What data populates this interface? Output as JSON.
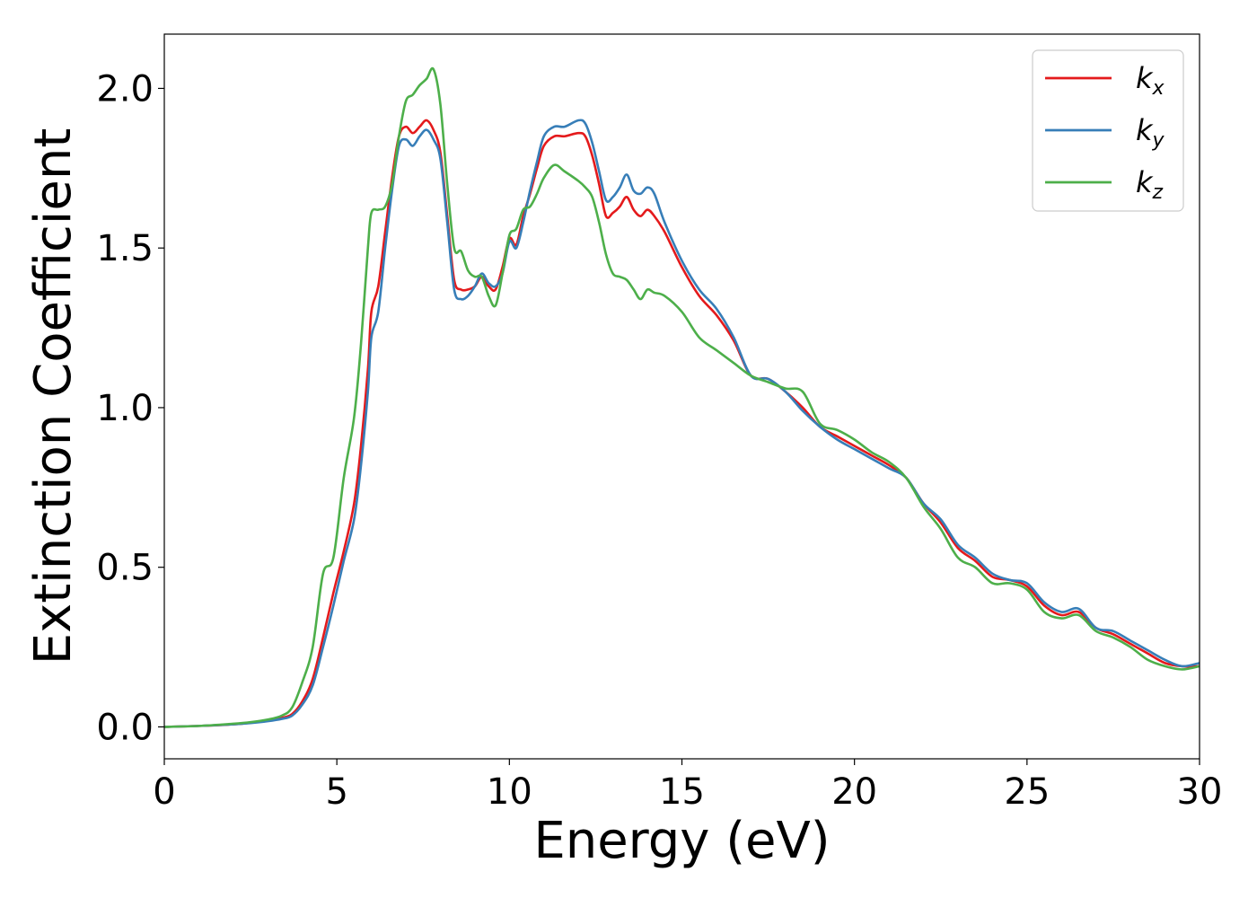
{
  "chart_data": {
    "type": "line",
    "xlabel": "Energy (eV)",
    "ylabel": "Extinction Coefficient",
    "xlim": [
      0,
      30
    ],
    "ylim": [
      -0.1,
      2.17
    ],
    "xticks": [
      0,
      5,
      10,
      15,
      20,
      25,
      30
    ],
    "xtick_labels": [
      "0",
      "5",
      "10",
      "15",
      "20",
      "25",
      "30"
    ],
    "yticks": [
      0.0,
      0.5,
      1.0,
      1.5,
      2.0
    ],
    "ytick_labels": [
      "0.0",
      "0.5",
      "1.0",
      "1.5",
      "2.0"
    ],
    "grid": false,
    "legend_position": "top-right",
    "series": [
      {
        "name": "kx",
        "legend_base": "k",
        "legend_sub": "x",
        "color": "#e41a1c",
        "x": [
          0,
          1,
          2,
          2.5,
          3,
          3.4,
          3.7,
          4.0,
          4.3,
          4.6,
          4.9,
          5.2,
          5.5,
          5.7,
          5.9,
          6.0,
          6.2,
          6.4,
          6.6,
          6.8,
          7.0,
          7.2,
          7.4,
          7.6,
          7.8,
          8.0,
          8.2,
          8.4,
          8.6,
          8.8,
          9.0,
          9.2,
          9.4,
          9.6,
          9.8,
          10.0,
          10.2,
          10.4,
          10.6,
          10.8,
          11.0,
          11.3,
          11.6,
          12.0,
          12.2,
          12.4,
          12.6,
          12.8,
          13.0,
          13.2,
          13.4,
          13.6,
          13.8,
          14.0,
          14.2,
          14.5,
          15.0,
          15.5,
          16.0,
          16.5,
          17.0,
          17.5,
          18.0,
          18.5,
          19.0,
          19.5,
          20.0,
          20.5,
          21.0,
          21.5,
          22.0,
          22.5,
          23.0,
          23.5,
          24.0,
          24.5,
          25.0,
          25.5,
          26.0,
          26.5,
          27.0,
          27.5,
          28.0,
          28.5,
          29.0,
          29.5,
          30.0
        ],
        "values": [
          0.0,
          0.003,
          0.008,
          0.013,
          0.02,
          0.028,
          0.04,
          0.08,
          0.15,
          0.28,
          0.42,
          0.55,
          0.7,
          0.88,
          1.12,
          1.3,
          1.38,
          1.55,
          1.72,
          1.85,
          1.88,
          1.86,
          1.88,
          1.9,
          1.87,
          1.8,
          1.6,
          1.4,
          1.37,
          1.37,
          1.38,
          1.41,
          1.38,
          1.37,
          1.44,
          1.53,
          1.51,
          1.6,
          1.67,
          1.75,
          1.82,
          1.85,
          1.85,
          1.86,
          1.85,
          1.79,
          1.7,
          1.6,
          1.61,
          1.63,
          1.66,
          1.62,
          1.6,
          1.62,
          1.6,
          1.55,
          1.44,
          1.35,
          1.29,
          1.21,
          1.1,
          1.09,
          1.05,
          1.0,
          0.94,
          0.91,
          0.88,
          0.85,
          0.82,
          0.78,
          0.7,
          0.64,
          0.56,
          0.52,
          0.47,
          0.46,
          0.44,
          0.38,
          0.35,
          0.36,
          0.31,
          0.29,
          0.26,
          0.23,
          0.2,
          0.19,
          0.19
        ]
      },
      {
        "name": "ky",
        "legend_base": "k",
        "legend_sub": "y",
        "color": "#377eb8",
        "x": [
          0,
          1,
          2,
          2.5,
          3,
          3.4,
          3.7,
          4.0,
          4.3,
          4.6,
          4.9,
          5.2,
          5.5,
          5.7,
          5.9,
          6.0,
          6.2,
          6.4,
          6.6,
          6.8,
          7.0,
          7.2,
          7.4,
          7.6,
          7.8,
          8.0,
          8.2,
          8.4,
          8.6,
          8.8,
          9.0,
          9.2,
          9.4,
          9.6,
          9.8,
          10.0,
          10.2,
          10.4,
          10.6,
          10.8,
          11.0,
          11.3,
          11.6,
          12.0,
          12.2,
          12.4,
          12.6,
          12.8,
          13.0,
          13.2,
          13.4,
          13.6,
          13.8,
          14.0,
          14.2,
          14.5,
          15.0,
          15.5,
          16.0,
          16.5,
          17.0,
          17.5,
          18.0,
          18.5,
          19.0,
          19.5,
          20.0,
          20.5,
          21.0,
          21.5,
          22.0,
          22.5,
          23.0,
          23.5,
          24.0,
          24.5,
          25.0,
          25.5,
          26.0,
          26.5,
          27.0,
          27.5,
          28.0,
          28.5,
          29.0,
          29.5,
          30.0
        ],
        "values": [
          0.0,
          0.003,
          0.008,
          0.012,
          0.018,
          0.025,
          0.035,
          0.07,
          0.13,
          0.25,
          0.38,
          0.52,
          0.65,
          0.82,
          1.05,
          1.22,
          1.3,
          1.5,
          1.68,
          1.82,
          1.84,
          1.82,
          1.85,
          1.87,
          1.84,
          1.78,
          1.58,
          1.37,
          1.34,
          1.35,
          1.38,
          1.42,
          1.39,
          1.38,
          1.42,
          1.52,
          1.5,
          1.58,
          1.68,
          1.77,
          1.85,
          1.88,
          1.88,
          1.9,
          1.89,
          1.83,
          1.74,
          1.65,
          1.66,
          1.69,
          1.73,
          1.68,
          1.67,
          1.69,
          1.67,
          1.58,
          1.46,
          1.37,
          1.31,
          1.22,
          1.1,
          1.09,
          1.05,
          0.99,
          0.94,
          0.9,
          0.87,
          0.84,
          0.81,
          0.78,
          0.7,
          0.65,
          0.57,
          0.53,
          0.48,
          0.46,
          0.45,
          0.39,
          0.36,
          0.37,
          0.31,
          0.3,
          0.27,
          0.24,
          0.21,
          0.19,
          0.2
        ]
      },
      {
        "name": "kz",
        "legend_base": "k",
        "legend_sub": "z",
        "color": "#4daf4a",
        "x": [
          0,
          1,
          2,
          2.5,
          3,
          3.4,
          3.7,
          4.0,
          4.3,
          4.6,
          4.9,
          5.2,
          5.5,
          5.7,
          5.9,
          6.0,
          6.2,
          6.4,
          6.6,
          6.8,
          7.0,
          7.2,
          7.4,
          7.6,
          7.8,
          8.0,
          8.2,
          8.4,
          8.6,
          8.8,
          9.0,
          9.2,
          9.4,
          9.6,
          9.8,
          10.0,
          10.2,
          10.4,
          10.6,
          10.8,
          11.0,
          11.3,
          11.6,
          12.0,
          12.2,
          12.4,
          12.6,
          12.8,
          13.0,
          13.2,
          13.4,
          13.6,
          13.8,
          14.0,
          14.2,
          14.5,
          15.0,
          15.5,
          16.0,
          16.5,
          17.0,
          17.5,
          18.0,
          18.5,
          19.0,
          19.5,
          20.0,
          20.5,
          21.0,
          21.5,
          22.0,
          22.5,
          23.0,
          23.5,
          24.0,
          24.5,
          25.0,
          25.5,
          26.0,
          26.5,
          27.0,
          27.5,
          28.0,
          28.5,
          29.0,
          29.5,
          30.0
        ],
        "values": [
          0.0,
          0.003,
          0.01,
          0.015,
          0.023,
          0.035,
          0.06,
          0.14,
          0.25,
          0.48,
          0.53,
          0.78,
          0.97,
          1.2,
          1.5,
          1.61,
          1.62,
          1.63,
          1.7,
          1.85,
          1.96,
          1.98,
          2.01,
          2.03,
          2.06,
          1.95,
          1.7,
          1.5,
          1.49,
          1.43,
          1.41,
          1.41,
          1.35,
          1.32,
          1.42,
          1.54,
          1.56,
          1.62,
          1.63,
          1.67,
          1.72,
          1.76,
          1.74,
          1.71,
          1.69,
          1.66,
          1.58,
          1.48,
          1.42,
          1.41,
          1.4,
          1.37,
          1.34,
          1.37,
          1.36,
          1.35,
          1.3,
          1.22,
          1.18,
          1.14,
          1.1,
          1.08,
          1.06,
          1.05,
          0.95,
          0.93,
          0.9,
          0.86,
          0.83,
          0.78,
          0.69,
          0.62,
          0.53,
          0.5,
          0.45,
          0.45,
          0.43,
          0.36,
          0.34,
          0.35,
          0.3,
          0.28,
          0.25,
          0.21,
          0.19,
          0.18,
          0.19
        ]
      }
    ]
  }
}
